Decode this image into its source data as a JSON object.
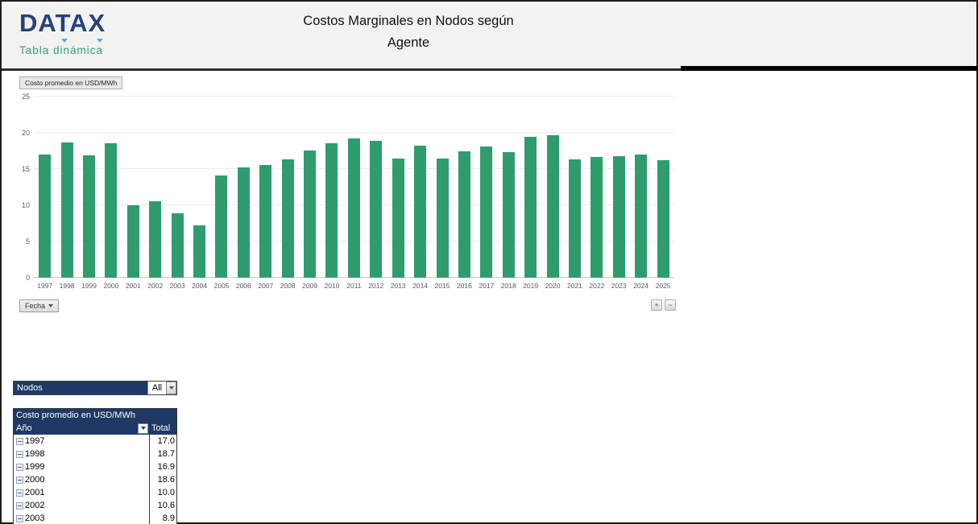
{
  "header": {
    "logo": "DATAX",
    "logo_subtitle": "Tabla dinámica",
    "title_line1": "Costos Marginales en Nodos según",
    "title_line2": "Agente"
  },
  "chart": {
    "field_button": "Costo promedio en USD/MWh",
    "axis_button": "Fecha",
    "expand_button": "+",
    "collapse_button": "−"
  },
  "chart_data": {
    "type": "bar",
    "title": "Costo promedio en USD/MWh",
    "categories": [
      "1997",
      "1998",
      "1999",
      "2000",
      "2001",
      "2002",
      "2003",
      "2004",
      "2005",
      "2006",
      "2007",
      "2008",
      "2009",
      "2010",
      "2011",
      "2012",
      "2013",
      "2014",
      "2015",
      "2016",
      "2017",
      "2018",
      "2019",
      "2020",
      "2021",
      "2022",
      "2023",
      "2024",
      "2025"
    ],
    "values": [
      17.0,
      18.7,
      16.9,
      18.6,
      10.0,
      10.6,
      8.9,
      7.2,
      14.1,
      15.2,
      15.6,
      16.3,
      17.6,
      18.6,
      19.2,
      18.9,
      16.5,
      18.2,
      16.4,
      17.5,
      18.1,
      17.3,
      19.4,
      19.7,
      16.3,
      16.7,
      16.8,
      17.0,
      16.2
    ],
    "xlabel": "Fecha",
    "ylabel": "",
    "ylim": [
      0,
      25
    ],
    "yticks": [
      0,
      5,
      10,
      15,
      20,
      25
    ],
    "grid": true,
    "legend_position": "none",
    "bar_color": "#2f9c6e"
  },
  "filter": {
    "label": "Nodos",
    "value": "All"
  },
  "pivot_table": {
    "title": "Costo promedio en USD/MWh",
    "row_header": "Año",
    "value_header": "Total",
    "rows": [
      {
        "year": "1997",
        "total": "17.0"
      },
      {
        "year": "1998",
        "total": "18.7"
      },
      {
        "year": "1999",
        "total": "16.9"
      },
      {
        "year": "2000",
        "total": "18.6"
      },
      {
        "year": "2001",
        "total": "10.0"
      },
      {
        "year": "2002",
        "total": "10.6"
      },
      {
        "year": "2003",
        "total": "8.9"
      }
    ]
  },
  "colors": {
    "bar_green": "#2f9c6e",
    "navy": "#1f3864",
    "logo_navy": "#27417b",
    "logo_green": "#2ea174",
    "header_bg": "#f2f2f0",
    "axis_text": "#595959"
  }
}
